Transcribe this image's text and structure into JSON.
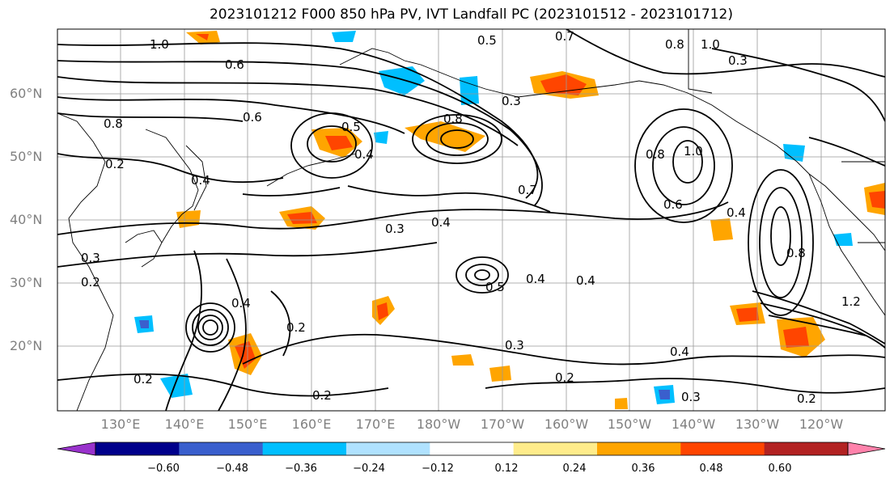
{
  "title": "2023101212 F000 850 hPa PV, IVT Landfall PC (2023101512 - 2023101712)",
  "lat_labels": [
    "60°N",
    "50°N",
    "40°N",
    "30°N",
    "20°N"
  ],
  "lon_labels": [
    "130°E",
    "140°E",
    "150°E",
    "160°E",
    "170°E",
    "180°W",
    "170°W",
    "160°W",
    "150°W",
    "140°W",
    "130°W",
    "120°W"
  ],
  "colorbar": {
    "ticks": [
      "−0.60",
      "−0.48",
      "−0.36",
      "−0.24",
      "−0.12",
      "0.12",
      "0.24",
      "0.36",
      "0.48",
      "0.60"
    ],
    "colors": [
      "#9932cc",
      "#00008b",
      "#3a5fcd",
      "#00bfff",
      "#b0e2ff",
      "#ffffff",
      "#ffec8b",
      "#ffa500",
      "#ff4500",
      "#b22222",
      "#ff82ab"
    ]
  },
  "contour_labels": [
    "1.0",
    "0.7",
    "0.6",
    "0.5",
    "0.2",
    "0.6",
    "0.8",
    "0.5",
    "0.4",
    "0.3",
    "0.8",
    "0.7",
    "0.4",
    "0.3",
    "0.5",
    "0.4",
    "0.4",
    "0.2",
    "0.3",
    "0.2",
    "0.8",
    "1.0",
    "0.6",
    "0.4",
    "0.8",
    "1.2",
    "0.4",
    "0.3",
    "0.2",
    "0.3",
    "0.2",
    "0.2",
    "0.4",
    "1.0",
    "0.3",
    "0.8",
    "0.4",
    "0.2"
  ],
  "map_features": {
    "contour_field": "850 hPa PV",
    "shaded_field": "IVT Landfall PC",
    "grid": true,
    "coastlines": true
  }
}
